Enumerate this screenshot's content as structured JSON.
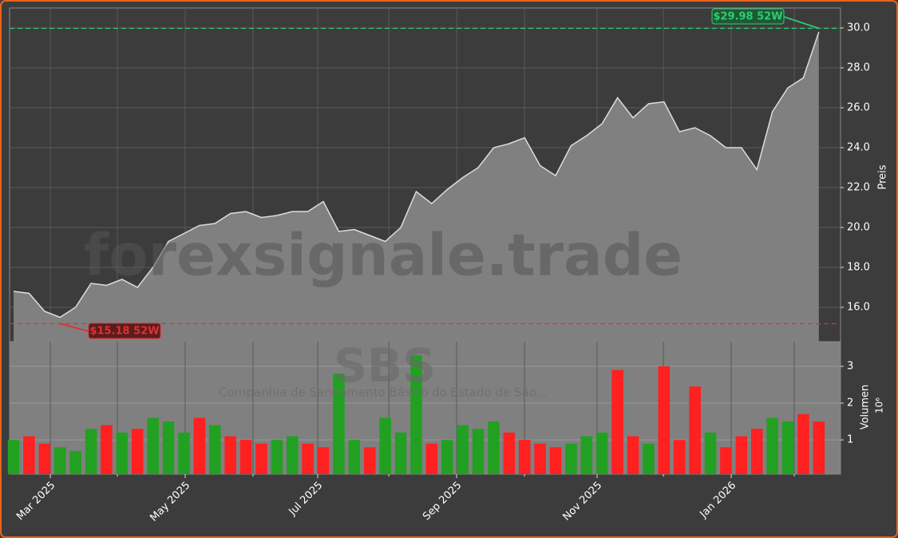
{
  "chart_data": {
    "type": "area",
    "watermark": "forexsignale.trade",
    "symbol": "SBS",
    "company": "Companhia de Saneamento Básico do Estado de São...",
    "ylabel": "Preis",
    "y2label": "Volumen",
    "y2unit": "10⁶",
    "color": "#808080",
    "line_color": "#dddddd",
    "grid": true,
    "xlim": [
      -0.26,
      53.4
    ],
    "xticks": [
      {
        "value": 2.37,
        "label": "Mar 2025"
      },
      {
        "value": 11.08,
        "label": "May 2025"
      },
      {
        "value": 19.64,
        "label": "Jul 2025"
      },
      {
        "value": 28.61,
        "label": "Sep 2025"
      },
      {
        "value": 37.68,
        "label": "Nov 2025"
      },
      {
        "value": 46.34,
        "label": "Jan 2026"
      }
    ],
    "xminorticks": [
      6.7,
      15.46,
      24.23,
      32.99,
      41.96,
      50.41
    ],
    "ylim": [
      14.28,
      31.0
    ],
    "yticks": [
      {
        "value": 16,
        "label": "16.0"
      },
      {
        "value": 18,
        "label": "18.0"
      },
      {
        "value": 20,
        "label": "20.0"
      },
      {
        "value": 22,
        "label": "22.0"
      },
      {
        "value": 24,
        "label": "24.0"
      },
      {
        "value": 26,
        "label": "26.0"
      },
      {
        "value": 28,
        "label": "28.0"
      },
      {
        "value": 30,
        "label": "30.0"
      }
    ],
    "values": [
      16.8,
      16.7,
      15.8,
      15.5,
      16.0,
      17.2,
      17.1,
      17.4,
      17.0,
      18.0,
      19.3,
      19.7,
      20.1,
      20.2,
      20.7,
      20.8,
      20.5,
      20.6,
      20.8,
      20.8,
      21.3,
      19.8,
      19.9,
      19.6,
      19.3,
      20.0,
      21.8,
      21.2,
      21.9,
      22.5,
      23.0,
      24.0,
      24.2,
      24.5,
      23.1,
      22.6,
      24.1,
      24.6,
      25.2,
      26.5,
      25.5,
      26.2,
      26.3,
      24.8,
      25.0,
      24.6,
      24.0,
      24.0,
      22.9,
      25.8,
      27.0,
      27.5,
      29.8
    ],
    "high_52w": {
      "value": 29.98,
      "text": "$29.98 52W",
      "color": "#2ecc71"
    },
    "low_52w": {
      "value": 15.18,
      "text": "$15.18 52W",
      "color": "#e03030"
    },
    "y2lim": [
      0.07,
      3.67
    ],
    "y2ticks": [
      1,
      2,
      3
    ],
    "volume": {
      "values": [
        1.0,
        1.1,
        0.9,
        0.8,
        0.7,
        1.3,
        1.4,
        1.2,
        1.3,
        1.6,
        1.5,
        1.2,
        1.6,
        1.4,
        1.1,
        1.0,
        0.9,
        1.0,
        1.1,
        0.9,
        0.8,
        2.8,
        1.0,
        0.8,
        1.6,
        1.2,
        3.3,
        0.9,
        1.0,
        1.4,
        1.3,
        1.5,
        1.2,
        1.0,
        0.9,
        0.8,
        0.9,
        1.1,
        1.2,
        2.9,
        1.1,
        0.9,
        3.0,
        1.0,
        2.45,
        1.2,
        0.8,
        1.1,
        1.3,
        1.6,
        1.5,
        1.7,
        1.5
      ],
      "colors": [
        "#22a022",
        "#ff2020",
        "#ff2020",
        "#22a022",
        "#22a022",
        "#22a022",
        "#ff2020",
        "#22a022",
        "#ff2020",
        "#22a022",
        "#22a022",
        "#22a022",
        "#ff2020",
        "#22a022",
        "#ff2020",
        "#ff2020",
        "#ff2020",
        "#22a022",
        "#22a022",
        "#ff2020",
        "#ff2020",
        "#22a022",
        "#22a022",
        "#ff2020",
        "#22a022",
        "#22a022",
        "#22a022",
        "#ff2020",
        "#22a022",
        "#22a022",
        "#22a022",
        "#22a022",
        "#ff2020",
        "#ff2020",
        "#ff2020",
        "#ff2020",
        "#22a022",
        "#22a022",
        "#22a022",
        "#ff2020",
        "#ff2020",
        "#22a022",
        "#ff2020",
        "#ff2020",
        "#ff2020",
        "#22a022",
        "#ff2020",
        "#ff2020",
        "#ff2020",
        "#22a022",
        "#22a022",
        "#ff2020",
        "#ff2020"
      ]
    }
  }
}
